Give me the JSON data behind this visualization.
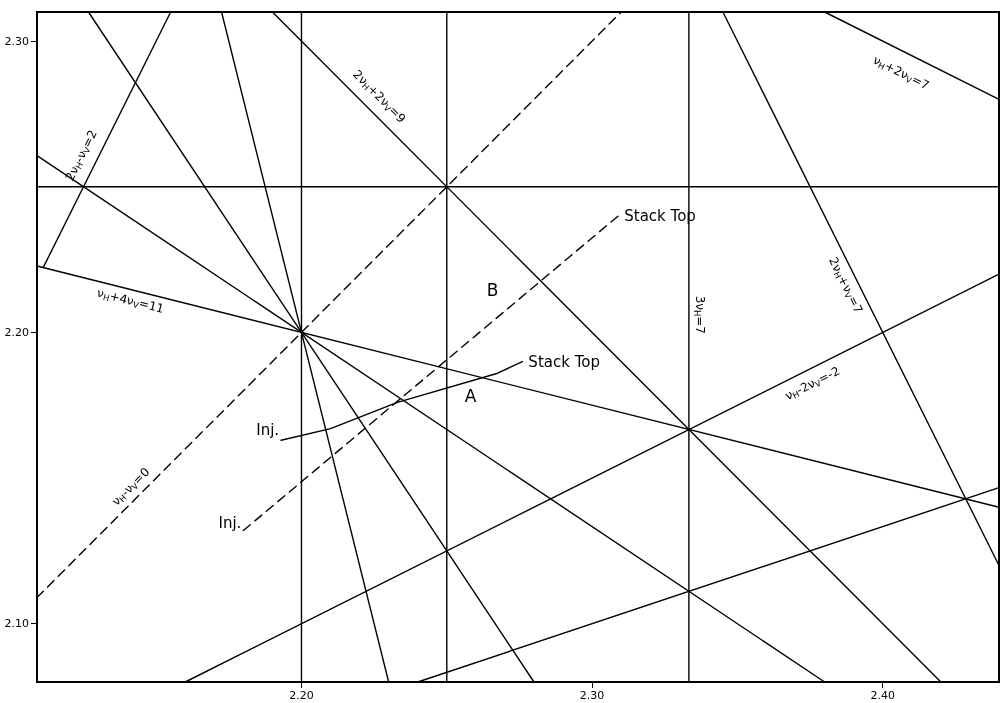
{
  "chart_data": {
    "type": "line",
    "color": "#000000",
    "marker": "none",
    "grid": false,
    "line_style": "solid",
    "xlim": [
      2.109,
      2.44
    ],
    "ylim": [
      2.08,
      2.31
    ],
    "xticks": [
      {
        "value": 2.2,
        "label": "2.20"
      },
      {
        "value": 2.3,
        "label": "2.30"
      },
      {
        "value": 2.4,
        "label": "2.40"
      }
    ],
    "yticks": [
      {
        "value": 2.1,
        "label": "2.10"
      },
      {
        "value": 2.2,
        "label": "2.20"
      },
      {
        "value": 2.3,
        "label": "2.30"
      }
    ],
    "series": [
      {
        "name": "ν$_{H}$-ν$_{V}$=0",
        "x": [
          2.109,
          2.31
        ],
        "values": [
          2.109,
          2.31
        ],
        "line_style": "dashed"
      },
      {
        "name": "2ν$_{H}$+2ν$_{V}$=9",
        "x": [
          2.19,
          2.42
        ],
        "values": [
          2.31,
          2.08
        ]
      },
      {
        "name": "ν$_{H}$+4ν$_{V}$=11",
        "x": [
          2.109,
          2.44
        ],
        "values": [
          2.2228,
          2.14
        ]
      },
      {
        "name": "2ν$_{H}$-ν$_{V}$=2",
        "x": [
          2.1112,
          2.155
        ],
        "values": [
          2.2224,
          2.31
        ]
      },
      {
        "x": [
          2.109,
          2.44
        ],
        "values": [
          2.25,
          2.25
        ]
      },
      {
        "x": [
          2.2,
          2.2
        ],
        "values": [
          2.08,
          2.31
        ]
      },
      {
        "x": [
          2.25,
          2.25
        ],
        "values": [
          2.08,
          2.31
        ]
      },
      {
        "name": "3ν$_{H}$=7",
        "x": [
          2.3333,
          2.3333
        ],
        "values": [
          2.08,
          2.31
        ]
      },
      {
        "name": "ν$_{H}$+2ν$_{V}$=7",
        "x": [
          2.38,
          2.44
        ],
        "values": [
          2.31,
          2.28
        ]
      },
      {
        "name": "2ν$_{H}$+ν$_{V}$=7",
        "x": [
          2.345,
          2.44
        ],
        "values": [
          2.31,
          2.12
        ]
      },
      {
        "name": "ν$_{H}$-2ν$_{V}$=-2",
        "x": [
          2.16,
          2.44
        ],
        "values": [
          2.08,
          2.22
        ]
      },
      {
        "x": [
          2.24,
          2.44
        ],
        "values": [
          2.08,
          2.1467
        ]
      },
      {
        "x": [
          2.1725,
          2.23
        ],
        "values": [
          2.31,
          2.08
        ]
      },
      {
        "x": [
          2.1267,
          2.28
        ],
        "values": [
          2.31,
          2.08
        ]
      },
      {
        "x": [
          2.109,
          2.38
        ],
        "values": [
          2.2607,
          2.08
        ]
      },
      {
        "x": [
          2.193,
          2.21,
          2.233,
          2.2675,
          2.276
        ],
        "values": [
          2.163,
          2.167,
          2.176,
          2.186,
          2.19
        ]
      },
      {
        "x": [
          2.18,
          2.309
        ],
        "values": [
          2.132,
          2.24
        ],
        "line_style": "dashed"
      }
    ],
    "annotations": [
      {
        "text": "Stack Top",
        "x": 2.276,
        "y": 2.19
      },
      {
        "text": "Stack Top",
        "x": 2.309,
        "y": 2.24
      },
      {
        "text": "A",
        "x": 2.2675,
        "y": 2.186
      },
      {
        "text": "B",
        "x": 2.2675,
        "y": 2.2053
      },
      {
        "text": "Inj.",
        "x": 2.193,
        "y": 2.163
      },
      {
        "text": "Inj.",
        "x": 2.18,
        "y": 2.132
      }
    ]
  }
}
